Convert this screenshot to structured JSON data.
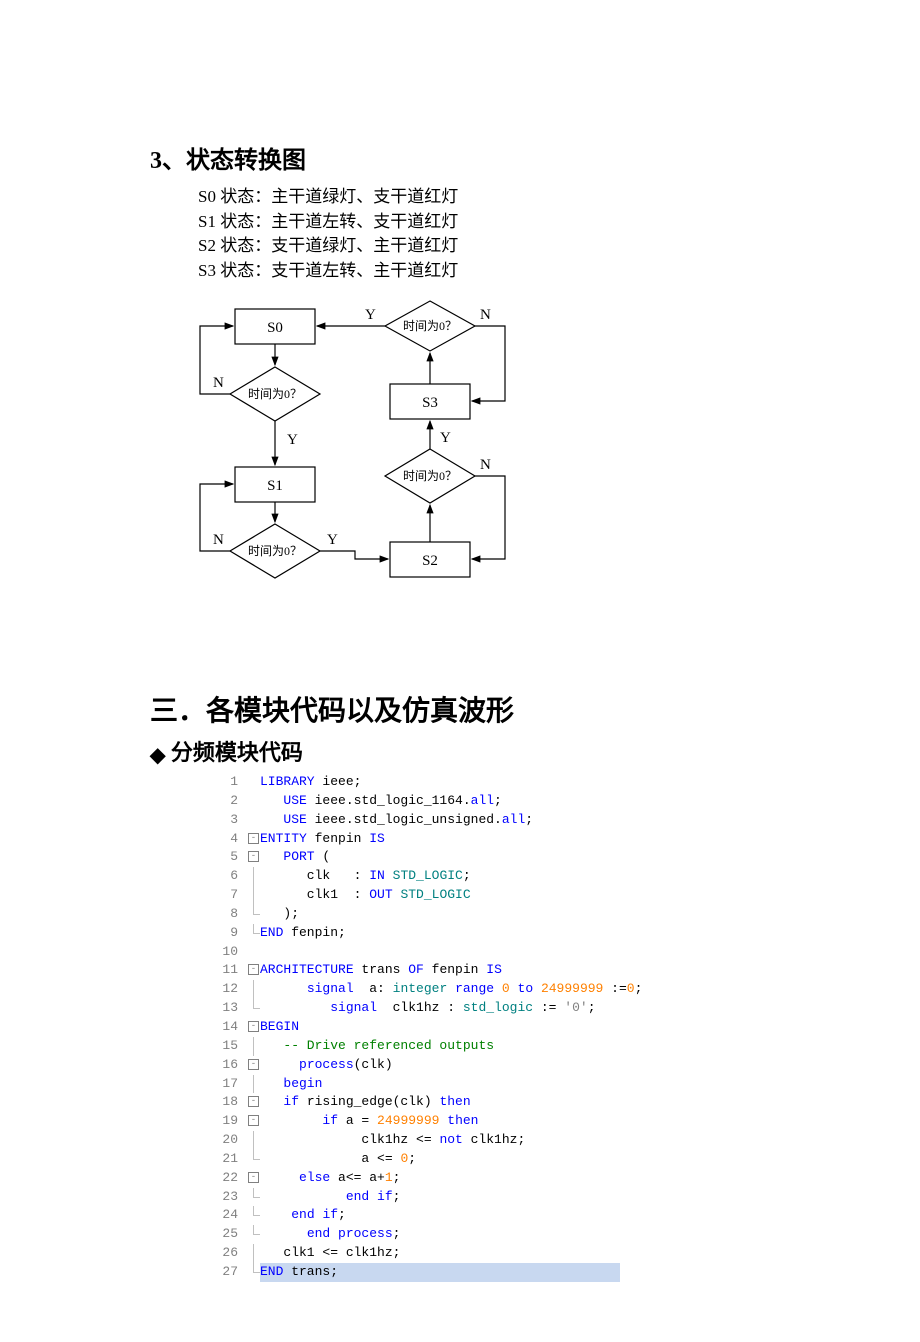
{
  "headings": {
    "section3": "3、状态转换图",
    "main3": "三．各模块代码以及仿真波形",
    "sub_fenpin": "分频模块代码"
  },
  "states": {
    "s0": "S0 状态：主干道绿灯、支干道红灯",
    "s1": "S1 状态：主干道左转、支干道红灯",
    "s2": "S2 状态：支干道绿灯、主干道红灯",
    "s3": "S3 状态：支干道左转、主干道红灯"
  },
  "flowchart": {
    "nodes": {
      "s0": "S0",
      "s1": "S1",
      "s2": "S2",
      "s3": "S3"
    },
    "decision_label": "时间为0？",
    "yes": "Y",
    "no": "N",
    "colors": {
      "stroke": "#000000",
      "fill": "#ffffff",
      "text": "#000000"
    },
    "font_size_node": 15,
    "font_size_decision": 13,
    "font_size_label": 15,
    "stroke_width": 1.2
  },
  "code": {
    "lines": [
      {
        "n": 1,
        "fold": "",
        "html": "<span class='kw'>LIBRARY</span> ieee;"
      },
      {
        "n": 2,
        "fold": "",
        "html": "   <span class='kw'>USE</span> ieee.std_logic_1164.<span class='kw'>all</span>;"
      },
      {
        "n": 3,
        "fold": "",
        "html": "   <span class='kw'>USE</span> ieee.std_logic_unsigned.<span class='kw'>all</span>;"
      },
      {
        "n": 4,
        "fold": "box",
        "html": "<span class='kw'>ENTITY</span> fenpin <span class='kw'>IS</span>"
      },
      {
        "n": 5,
        "fold": "box",
        "html": "   <span class='kw'>PORT</span> ("
      },
      {
        "n": 6,
        "fold": "line",
        "html": "      clk   : <span class='kw'>IN</span> <span class='typ'>STD_LOGIC</span>;"
      },
      {
        "n": 7,
        "fold": "line",
        "html": "      clk1  : <span class='kw'>OUT</span> <span class='typ'>STD_LOGIC</span>"
      },
      {
        "n": 8,
        "fold": "end",
        "html": "   );"
      },
      {
        "n": 9,
        "fold": "end",
        "html": "<span class='kw'>END</span> fenpin;"
      },
      {
        "n": 10,
        "fold": "",
        "html": ""
      },
      {
        "n": 11,
        "fold": "box",
        "html": "<span class='kw'>ARCHITECTURE</span> trans <span class='kw'>OF</span> fenpin <span class='kw'>IS</span>"
      },
      {
        "n": 12,
        "fold": "line",
        "html": "      <span class='kw'>signal</span>  a: <span class='typ'>integer</span> <span class='kw'>range</span> <span class='num'>0</span> <span class='kw'>to</span> <span class='num'>24999999</span> :=<span class='num'>0</span>;"
      },
      {
        "n": 13,
        "fold": "end",
        "html": "         <span class='kw'>signal</span>  clk1hz : <span class='typ'>std_logic</span> := <span class='str'>'0'</span>;"
      },
      {
        "n": 14,
        "fold": "box",
        "html": "<span class='kw'>BEGIN</span>"
      },
      {
        "n": 15,
        "fold": "line",
        "html": "   <span class='cmt'>-- Drive referenced outputs</span>"
      },
      {
        "n": 16,
        "fold": "box",
        "html": "     <span class='kw'>process</span>(clk)"
      },
      {
        "n": 17,
        "fold": "line",
        "html": "   <span class='kw'>begin</span>"
      },
      {
        "n": 18,
        "fold": "box",
        "html": "   <span class='kw'>if</span> rising_edge(clk) <span class='kw'>then</span>"
      },
      {
        "n": 19,
        "fold": "box",
        "html": "        <span class='kw'>if</span> a = <span class='num'>24999999</span> <span class='kw'>then</span>"
      },
      {
        "n": 20,
        "fold": "line",
        "html": "             clk1hz &lt;= <span class='kw'>not</span> clk1hz;"
      },
      {
        "n": 21,
        "fold": "end",
        "html": "             a &lt;= <span class='num'>0</span>;"
      },
      {
        "n": 22,
        "fold": "box",
        "html": "     <span class='kw'>else</span> a&lt;= a+<span class='num'>1</span>;"
      },
      {
        "n": 23,
        "fold": "end",
        "html": "           <span class='kw'>end</span> <span class='kw'>if</span>;"
      },
      {
        "n": 24,
        "fold": "end",
        "html": "    <span class='kw'>end</span> <span class='kw'>if</span>;"
      },
      {
        "n": 25,
        "fold": "end",
        "html": "      <span class='kw'>end</span> <span class='kw'>process</span>;"
      },
      {
        "n": 26,
        "fold": "line",
        "html": "   clk1 &lt;= clk1hz;"
      },
      {
        "n": 27,
        "fold": "end",
        "html": "<span class='kw'>END</span> trans;",
        "hl": true
      }
    ],
    "colors": {
      "keyword": "#0000ff",
      "type": "#008080",
      "number": "#ff8000",
      "string": "#808080",
      "comment": "#008000",
      "lineno": "#808080",
      "highlight_bg": "#c8d8f0"
    },
    "font_family": "Consolas",
    "font_size": 13
  }
}
